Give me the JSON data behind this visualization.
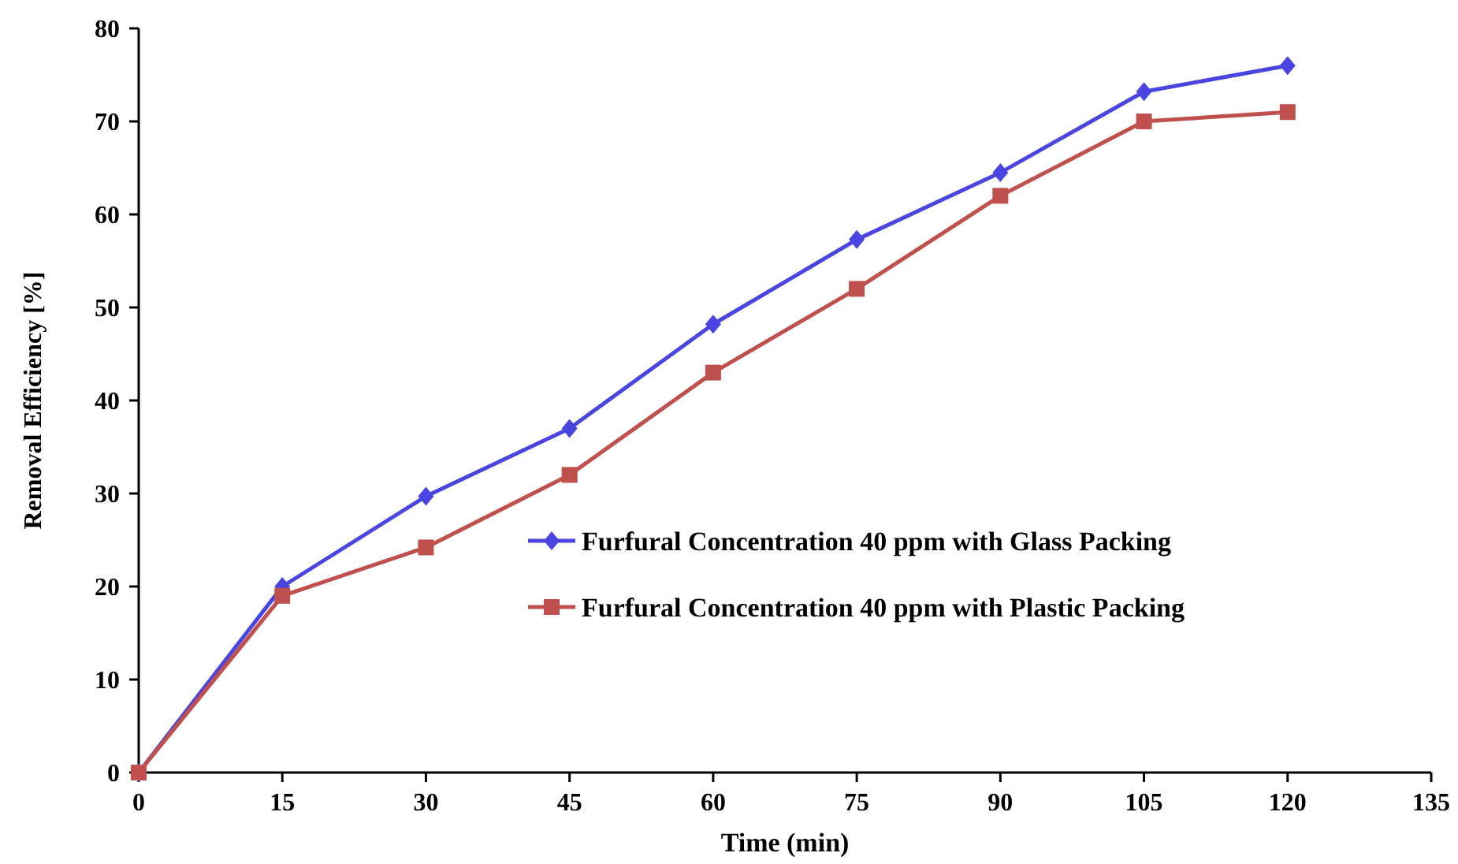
{
  "chart_data": {
    "type": "line",
    "xlabel": "Time (min)",
    "ylabel": "Removal Efficiency  [%]",
    "x": [
      0,
      15,
      30,
      45,
      60,
      75,
      90,
      105,
      120
    ],
    "series": [
      {
        "name": "Furfural  Concentration 40 ppm with Glass Packing",
        "color": "#4a45e0",
        "marker": "diamond",
        "values": [
          0,
          20,
          29.7,
          37,
          48.2,
          57.3,
          64.5,
          73.2,
          76
        ]
      },
      {
        "name": "Furfural  Concentration 40 ppm with Plastic Packing",
        "color": "#c0504d",
        "marker": "square",
        "values": [
          0,
          19,
          24.2,
          32,
          43,
          52,
          62,
          70,
          71
        ]
      }
    ],
    "xlim": [
      0,
      135
    ],
    "xticks": [
      0,
      15,
      30,
      45,
      60,
      75,
      90,
      105,
      120,
      135
    ],
    "ylim": [
      0,
      80
    ],
    "yticks": [
      0,
      10,
      20,
      30,
      40,
      50,
      60,
      70,
      80
    ],
    "grid": false,
    "legend": "right",
    "line_style": "solid"
  }
}
